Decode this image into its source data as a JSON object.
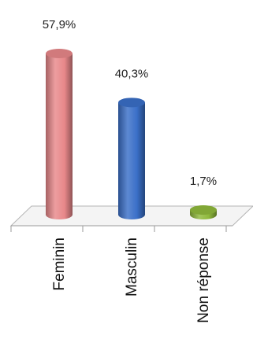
{
  "chart_data": {
    "type": "bar",
    "categories": [
      "Feminin",
      "Masculin",
      "Non réponse"
    ],
    "values": [
      57.9,
      40.3,
      1.7
    ],
    "data_labels": [
      "57,9%",
      "40,3%",
      "1,7%"
    ],
    "unit": "%",
    "colors": [
      "#e8888a",
      "#3a6fc8",
      "#8fb93c"
    ],
    "ylim": [
      0,
      60
    ],
    "grid": false,
    "legend": "none",
    "bar_shape": "cylinder",
    "category_label_orientation": "vertical"
  }
}
